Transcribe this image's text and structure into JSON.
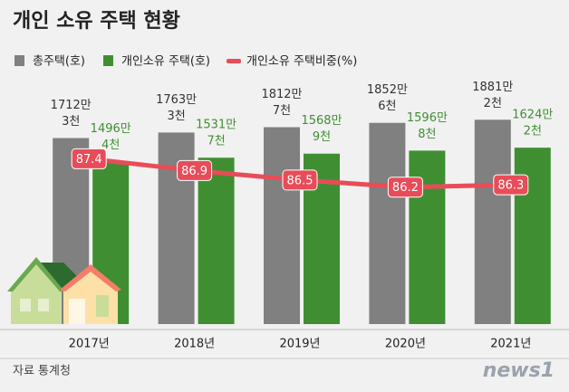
{
  "chart_data": {
    "type": "bar",
    "title": "개인 소유 주택 현황",
    "categories": [
      "2017년",
      "2018년",
      "2019년",
      "2020년",
      "2021년"
    ],
    "series": [
      {
        "name": "총주택(호)",
        "color": "#808080",
        "values": [
          1712.3,
          1763.3,
          1812.7,
          1852.6,
          1881.2
        ],
        "value_labels": [
          [
            "1712만",
            "3천"
          ],
          [
            "1763만",
            "3천"
          ],
          [
            "1812만",
            "7천"
          ],
          [
            "1852만",
            "6천"
          ],
          [
            "1881만",
            "2천"
          ]
        ]
      },
      {
        "name": "개인소유 주택(호)",
        "color": "#3f8f32",
        "values": [
          1496.4,
          1531.7,
          1568.9,
          1596.8,
          1624.2
        ],
        "value_labels": [
          [
            "1496만",
            "4천"
          ],
          [
            "1531만",
            "7천"
          ],
          [
            "1568만",
            "9천"
          ],
          [
            "1596만",
            "8천"
          ],
          [
            "1624만",
            "2천"
          ]
        ]
      },
      {
        "name": "개인소유 주택비중(%)",
        "color": "#e84c58",
        "type": "line",
        "axis": "y2",
        "values": [
          87.4,
          86.9,
          86.5,
          86.2,
          86.3
        ]
      }
    ],
    "ylim": [
      0,
      2000
    ],
    "y2lim": [
      80.4,
      89.6
    ],
    "source": "자료  통계청",
    "logo": "news1"
  }
}
